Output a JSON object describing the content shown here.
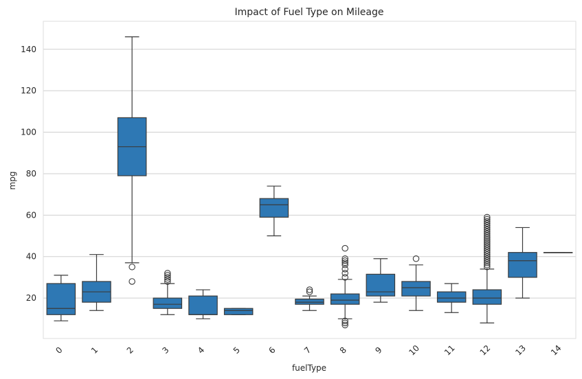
{
  "chart_data": {
    "type": "box",
    "title": "Impact of Fuel Type on Mileage",
    "xlabel": "fuelType",
    "ylabel": "mpg",
    "ylim": [
      0.5,
      153.5
    ],
    "yticks": [
      20,
      40,
      60,
      80,
      100,
      120,
      140
    ],
    "grid": "horizontal",
    "colors": {
      "box": "#2e78b4",
      "line": "#3b3b3b",
      "grid": "#cfcfcf",
      "frame": "#dddddd"
    },
    "categories": [
      "0",
      "1",
      "2",
      "3",
      "4",
      "5",
      "6",
      "7",
      "8",
      "9",
      "10",
      "11",
      "12",
      "13",
      "14"
    ],
    "boxes": [
      {
        "category": "0",
        "whisker_low": 9,
        "q1": 12,
        "median": 15,
        "q3": 27,
        "whisker_high": 31,
        "outliers": []
      },
      {
        "category": "1",
        "whisker_low": 14,
        "q1": 18,
        "median": 23,
        "q3": 28,
        "whisker_high": 41,
        "outliers": []
      },
      {
        "category": "2",
        "whisker_low": 37,
        "q1": 79,
        "median": 93,
        "q3": 107,
        "whisker_high": 146,
        "outliers": [
          35,
          28
        ]
      },
      {
        "category": "3",
        "whisker_low": 12,
        "q1": 15,
        "median": 17,
        "q3": 20,
        "whisker_high": 27,
        "outliers": [
          28,
          29,
          30,
          31,
          32
        ]
      },
      {
        "category": "4",
        "whisker_low": 10,
        "q1": 12,
        "median": 12,
        "q3": 21,
        "whisker_high": 24,
        "outliers": []
      },
      {
        "category": "5",
        "whisker_low": 12,
        "q1": 12,
        "median": 14,
        "q3": 15,
        "whisker_high": 15,
        "outliers": []
      },
      {
        "category": "6",
        "whisker_low": 50,
        "q1": 59,
        "median": 65,
        "q3": 68,
        "whisker_high": 74,
        "outliers": []
      },
      {
        "category": "7",
        "whisker_low": 14,
        "q1": 17,
        "median": 18,
        "q3": 19.5,
        "whisker_high": 21,
        "outliers": [
          23,
          24
        ]
      },
      {
        "category": "8",
        "whisker_low": 10,
        "q1": 17,
        "median": 19,
        "q3": 22,
        "whisker_high": 29,
        "outliers": [
          7,
          8,
          9,
          30,
          32,
          34,
          36,
          37,
          38,
          39,
          44
        ]
      },
      {
        "category": "9",
        "whisker_low": 18,
        "q1": 21,
        "median": 23,
        "q3": 31.5,
        "whisker_high": 39,
        "outliers": []
      },
      {
        "category": "10",
        "whisker_low": 14,
        "q1": 21,
        "median": 25,
        "q3": 28,
        "whisker_high": 36,
        "outliers": [
          39
        ]
      },
      {
        "category": "11",
        "whisker_low": 13,
        "q1": 18,
        "median": 20,
        "q3": 23,
        "whisker_high": 27,
        "outliers": []
      },
      {
        "category": "12",
        "whisker_low": 8,
        "q1": 17,
        "median": 20,
        "q3": 24,
        "whisker_high": 34,
        "outliers": [
          35,
          36,
          37,
          38,
          39,
          40,
          41,
          42,
          43,
          44,
          45,
          46,
          47,
          48,
          49,
          50,
          51,
          52,
          53,
          54,
          55,
          56,
          57,
          58,
          59
        ]
      },
      {
        "category": "13",
        "whisker_low": 20,
        "q1": 30,
        "median": 38,
        "q3": 42,
        "whisker_high": 54,
        "outliers": []
      },
      {
        "category": "14",
        "whisker_low": 42,
        "q1": 42,
        "median": 42,
        "q3": 42,
        "whisker_high": 42,
        "outliers": []
      }
    ]
  }
}
